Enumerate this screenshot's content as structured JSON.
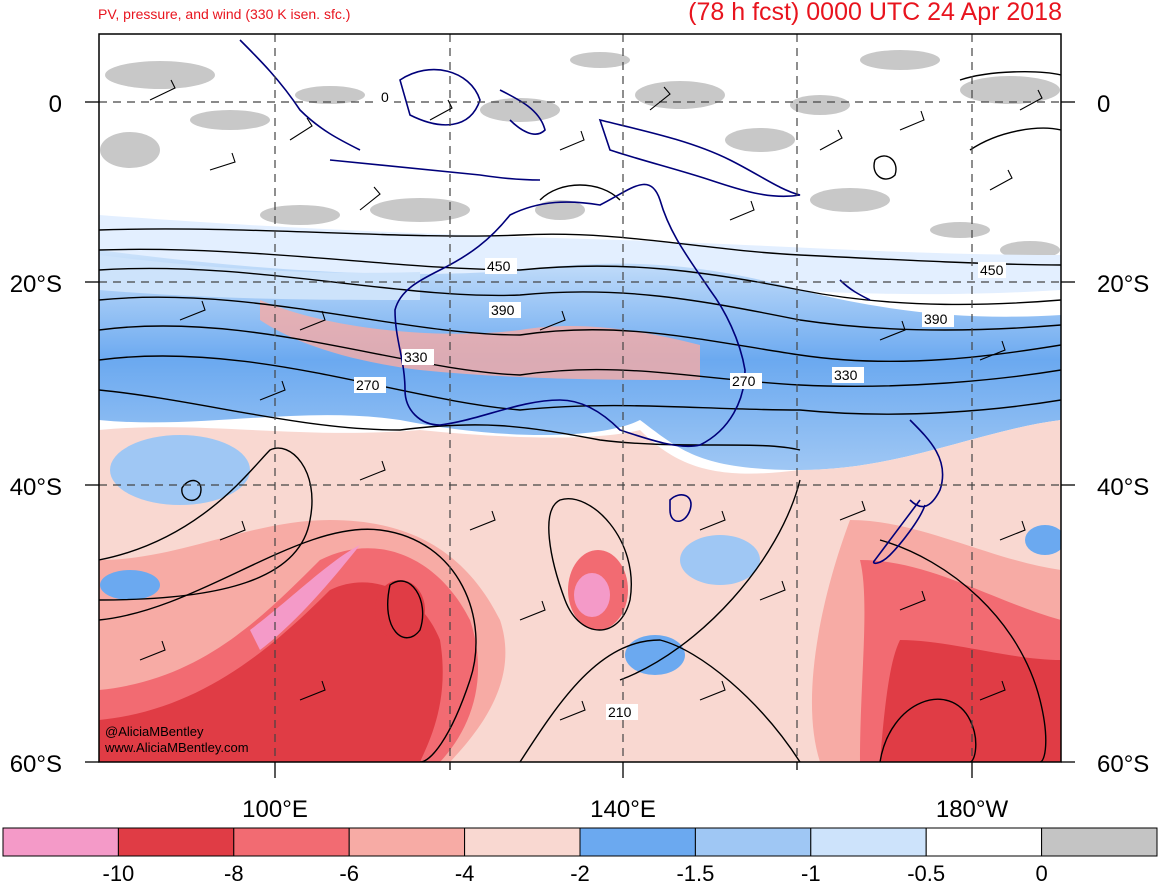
{
  "title_left": "PV, pressure, and wind (330 K isen. sfc.)",
  "title_right": "(78 h fcst) 0000 UTC 24 Apr 2018",
  "watermark": [
    "@AliciaMBentley",
    "www.AliciaMBentley.com"
  ],
  "axes": {
    "lat_labels": [
      "0",
      "20°S",
      "40°S",
      "60°S"
    ],
    "lon_labels": [
      "100°E",
      "140°E",
      "180°W"
    ]
  },
  "contour_labels": [
    "0",
    "450",
    "390",
    "330",
    "270",
    "270",
    "330",
    "390",
    "450",
    "210"
  ],
  "colorbar": {
    "tick_labels": [
      "-10",
      "-8",
      "-6",
      "-4",
      "-2",
      "-1.5",
      "-1",
      "-0.5",
      "0"
    ],
    "colors": [
      "#f49ac8",
      "#e03c45",
      "#f26b72",
      "#f7aba5",
      "#f9d8d1",
      "#6ba9f0",
      "#9fc7f4",
      "#cde3fb",
      "#ffffff",
      "#c4c4c4"
    ]
  },
  "colors": {
    "title": "#e8141e",
    "coast": "#00007a",
    "grid": "#444444"
  }
}
